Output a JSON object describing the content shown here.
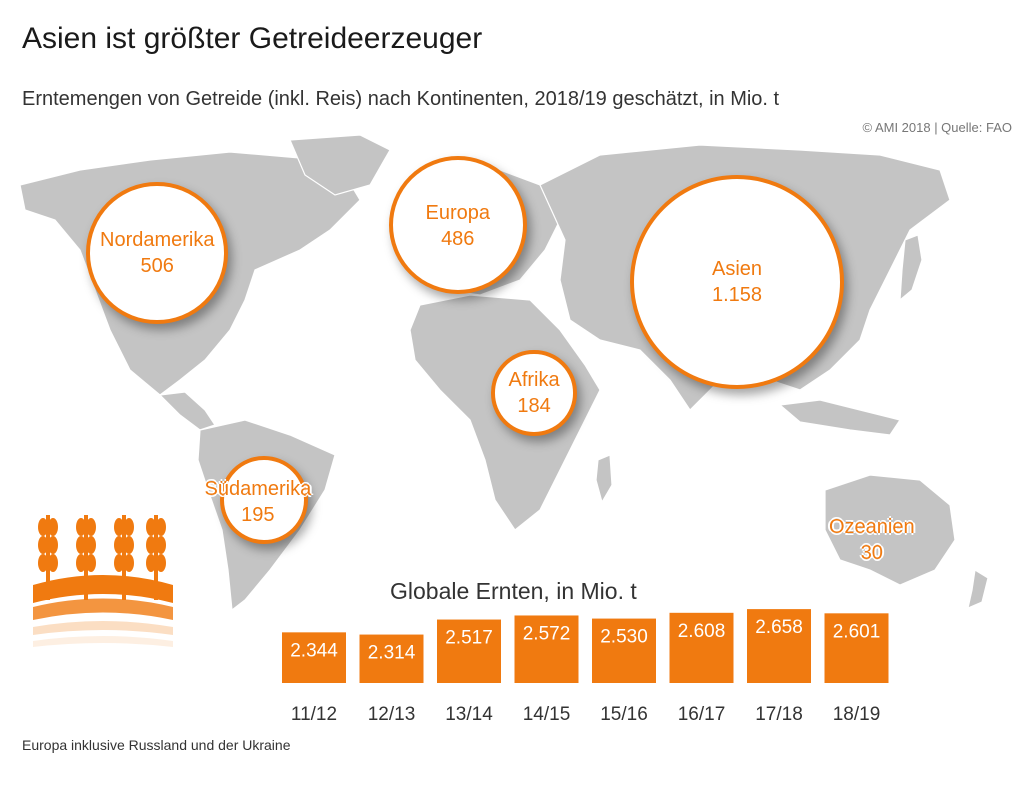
{
  "title": "Asien ist größter Getreideerzeuger",
  "subtitle": "Erntemengen von Getreide (inkl. Reis) nach Kontinenten, 2018/19 geschätzt, in Mio. t",
  "source": "© AMI 2018 | Quelle: FAO",
  "footnote": "Europa inklusive Russland und der Ukraine",
  "colors": {
    "accent": "#f07a10",
    "map": "#c4c4c4"
  },
  "continents": [
    {
      "name": "Nordamerika",
      "value": "506"
    },
    {
      "name": "Europa",
      "value": "486"
    },
    {
      "name": "Asien",
      "value": "1.158"
    },
    {
      "name": "Afrika",
      "value": "184"
    },
    {
      "name": "Südamerika",
      "value": "195"
    },
    {
      "name": "Ozeanien",
      "value": "30"
    }
  ],
  "chart_data": [
    {
      "type": "bubble",
      "categories": [
        "Nordamerika",
        "Europa",
        "Asien",
        "Afrika",
        "Südamerika",
        "Ozeanien"
      ],
      "values": [
        506,
        486,
        1158,
        184,
        195,
        30
      ]
    },
    {
      "type": "bar",
      "title": "Globale Ernten, in Mio. t",
      "categories": [
        "11/12",
        "12/13",
        "13/14",
        "14/15",
        "15/16",
        "16/17",
        "17/18",
        "18/19"
      ],
      "values": [
        2344,
        2314,
        2517,
        2572,
        2530,
        2608,
        2658,
        2601
      ],
      "value_labels": [
        "2.344",
        "2.314",
        "2.517",
        "2.572",
        "2.530",
        "2.608",
        "2.658",
        "2.601"
      ]
    }
  ]
}
